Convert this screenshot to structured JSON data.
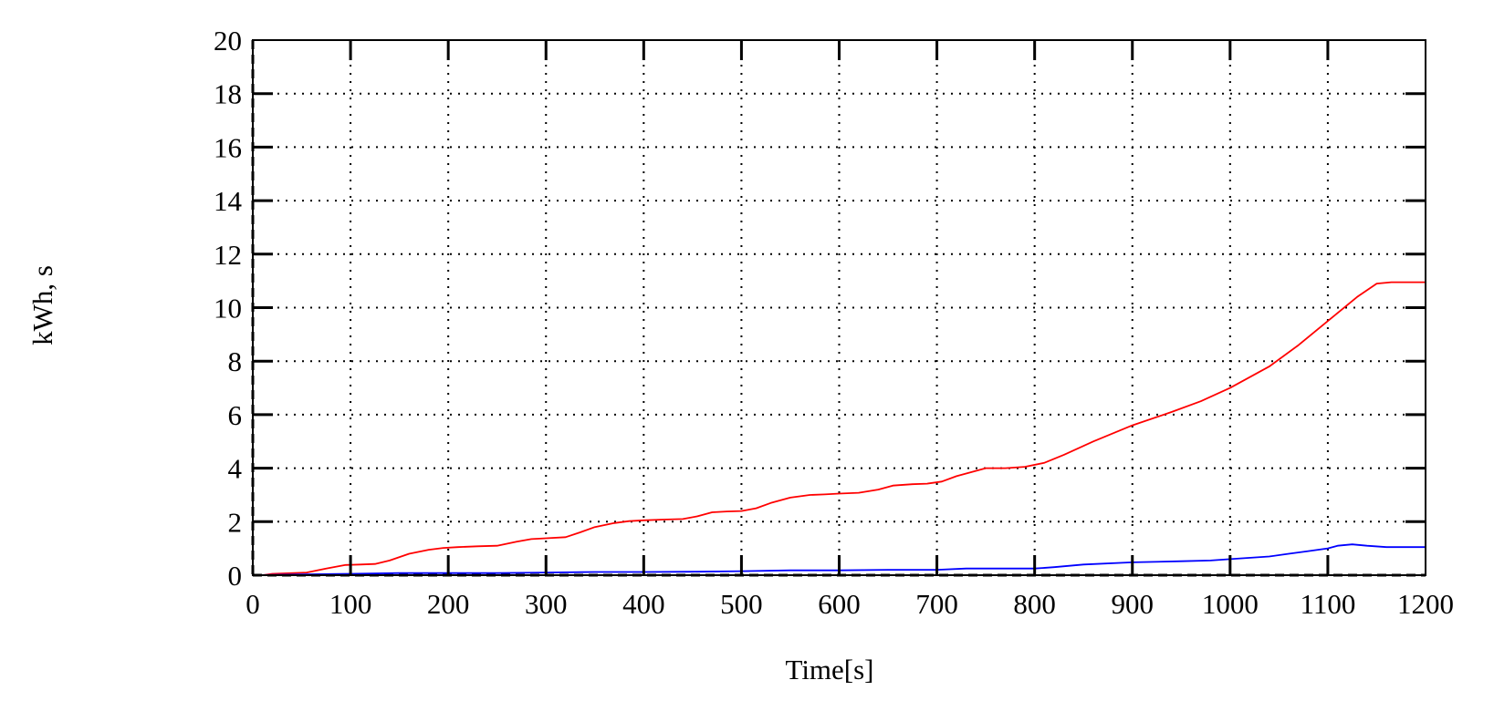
{
  "chart_data": {
    "type": "line",
    "title": "",
    "xlabel": "Time[s]",
    "ylabel": "kWh, s",
    "xlim": [
      0,
      1200
    ],
    "ylim": [
      0,
      20
    ],
    "x_ticks": [
      0,
      100,
      200,
      300,
      400,
      500,
      600,
      700,
      800,
      900,
      1000,
      1100,
      1200
    ],
    "y_ticks": [
      0,
      2,
      4,
      6,
      8,
      10,
      12,
      14,
      16,
      18,
      20
    ],
    "grid": true,
    "legend": null,
    "series": [
      {
        "color": "#ff0000",
        "x": [
          0,
          10,
          20,
          55,
          75,
          95,
          110,
          125,
          140,
          160,
          180,
          195,
          210,
          230,
          250,
          270,
          285,
          300,
          320,
          335,
          350,
          370,
          385,
          400,
          420,
          440,
          455,
          470,
          485,
          500,
          515,
          530,
          550,
          570,
          585,
          600,
          620,
          640,
          655,
          675,
          690,
          705,
          720,
          735,
          750,
          770,
          790,
          810,
          830,
          860,
          900,
          940,
          970,
          1000,
          1040,
          1070,
          1100,
          1130,
          1150,
          1165,
          1200
        ],
        "y": [
          0.0,
          0.0,
          0.05,
          0.1,
          0.25,
          0.38,
          0.4,
          0.42,
          0.55,
          0.8,
          0.95,
          1.02,
          1.05,
          1.08,
          1.1,
          1.25,
          1.35,
          1.38,
          1.42,
          1.6,
          1.8,
          1.95,
          2.02,
          2.05,
          2.08,
          2.1,
          2.2,
          2.35,
          2.38,
          2.4,
          2.5,
          2.7,
          2.9,
          3.0,
          3.02,
          3.05,
          3.08,
          3.2,
          3.35,
          3.4,
          3.42,
          3.5,
          3.7,
          3.85,
          4.0,
          4.0,
          4.05,
          4.2,
          4.5,
          5.0,
          5.6,
          6.1,
          6.5,
          7.0,
          7.8,
          8.6,
          9.5,
          10.4,
          10.9,
          10.95,
          10.95
        ]
      },
      {
        "color": "#0000ff",
        "x": [
          0,
          50,
          100,
          150,
          200,
          250,
          300,
          350,
          400,
          450,
          500,
          550,
          600,
          650,
          700,
          730,
          750,
          800,
          820,
          850,
          900,
          950,
          980,
          1000,
          1040,
          1060,
          1080,
          1100,
          1110,
          1125,
          1140,
          1160,
          1200
        ],
        "y": [
          0.0,
          0.03,
          0.05,
          0.08,
          0.08,
          0.08,
          0.1,
          0.12,
          0.12,
          0.13,
          0.15,
          0.18,
          0.18,
          0.2,
          0.2,
          0.25,
          0.25,
          0.25,
          0.3,
          0.4,
          0.48,
          0.52,
          0.55,
          0.6,
          0.7,
          0.8,
          0.9,
          1.0,
          1.1,
          1.15,
          1.1,
          1.05,
          1.05
        ]
      }
    ]
  }
}
